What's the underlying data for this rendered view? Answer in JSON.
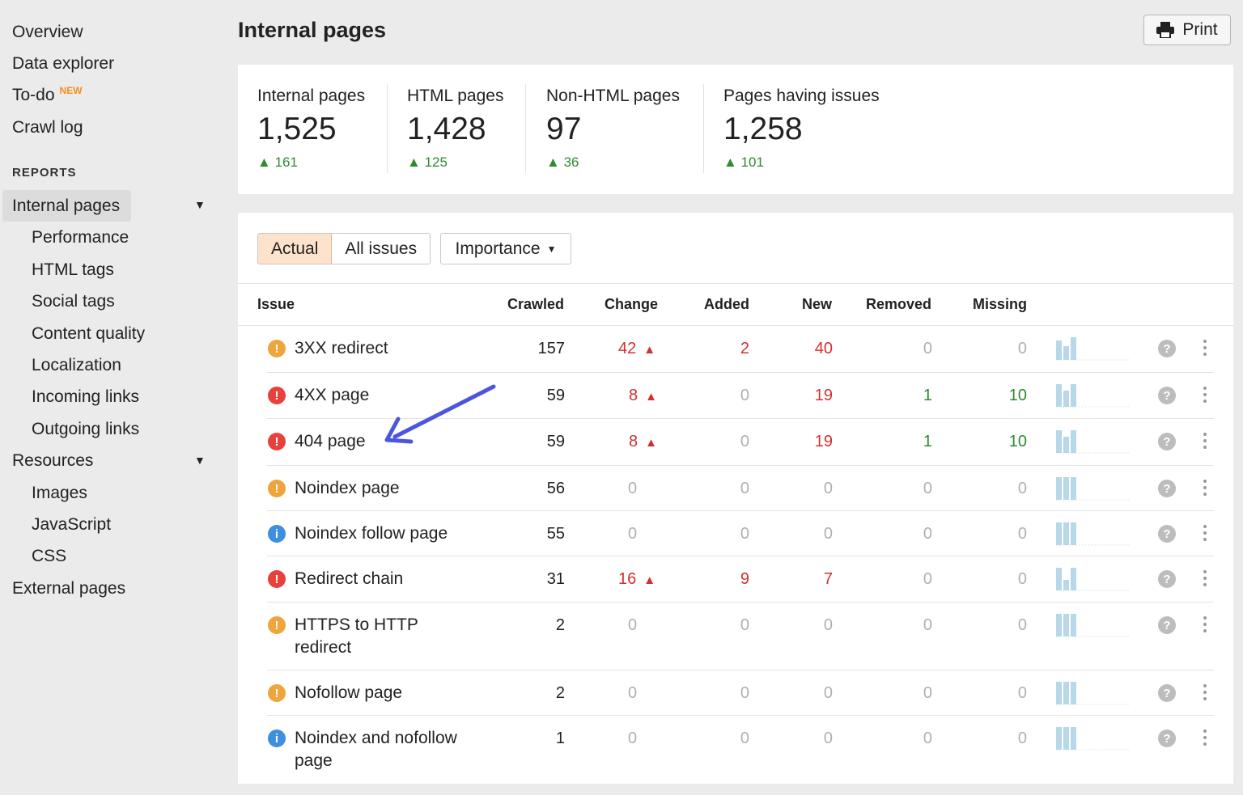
{
  "sidebar": {
    "items": [
      {
        "label": "Overview"
      },
      {
        "label": "Data explorer"
      },
      {
        "label": "To-do",
        "badge": "NEW"
      },
      {
        "label": "Crawl log"
      }
    ],
    "reports_heading": "REPORTS",
    "internal_pages": "Internal pages",
    "internal_sub": [
      "Performance",
      "HTML tags",
      "Social tags",
      "Content quality",
      "Localization",
      "Incoming links",
      "Outgoing links"
    ],
    "resources": "Resources",
    "resources_sub": [
      "Images",
      "JavaScript",
      "CSS"
    ],
    "external_pages": "External pages"
  },
  "header": {
    "title": "Internal pages",
    "print_label": "Print"
  },
  "summary": [
    {
      "label": "Internal pages",
      "value": "1,525",
      "delta": "161"
    },
    {
      "label": "HTML pages",
      "value": "1,428",
      "delta": "125"
    },
    {
      "label": "Non-HTML pages",
      "value": "97",
      "delta": "36"
    },
    {
      "label": "Pages having issues",
      "value": "1,258",
      "delta": "101"
    }
  ],
  "filters": {
    "actual": "Actual",
    "all_issues": "All issues",
    "importance": "Importance"
  },
  "table": {
    "headers": {
      "issue": "Issue",
      "crawled": "Crawled",
      "change": "Change",
      "added": "Added",
      "new": "New",
      "removed": "Removed",
      "missing": "Missing"
    },
    "rows": [
      {
        "severity": "warning",
        "name": "3XX redirect",
        "crawled": "157",
        "change": "42",
        "change_up": true,
        "added": "2",
        "new": "40",
        "removed": "0",
        "missing": "0",
        "spark": [
          0.85,
          0.6,
          1
        ]
      },
      {
        "severity": "error",
        "name": "4XX page",
        "crawled": "59",
        "change": "8",
        "change_up": true,
        "added": "0",
        "new": "19",
        "removed": "1",
        "missing": "10",
        "spark": [
          1,
          0.7,
          1
        ]
      },
      {
        "severity": "error",
        "name": "404 page",
        "crawled": "59",
        "change": "8",
        "change_up": true,
        "added": "0",
        "new": "19",
        "removed": "1",
        "missing": "10",
        "spark": [
          1,
          0.7,
          1
        ]
      },
      {
        "severity": "warning",
        "name": "Noindex page",
        "crawled": "56",
        "change": "0",
        "change_up": false,
        "added": "0",
        "new": "0",
        "removed": "0",
        "missing": "0",
        "spark": [
          1,
          1,
          1
        ]
      },
      {
        "severity": "info",
        "name": "Noindex follow page",
        "crawled": "55",
        "change": "0",
        "change_up": false,
        "added": "0",
        "new": "0",
        "removed": "0",
        "missing": "0",
        "spark": [
          1,
          1,
          1
        ]
      },
      {
        "severity": "error",
        "name": "Redirect chain",
        "crawled": "31",
        "change": "16",
        "change_up": true,
        "added": "9",
        "new": "7",
        "removed": "0",
        "missing": "0",
        "spark": [
          1,
          0.45,
          1
        ]
      },
      {
        "severity": "warning",
        "name": "HTTPS to HTTP redirect",
        "name_line2": "redirect",
        "name_line1": "HTTPS to HTTP",
        "crawled": "2",
        "change": "0",
        "change_up": false,
        "added": "0",
        "new": "0",
        "removed": "0",
        "missing": "0",
        "spark": [
          1,
          1,
          1
        ]
      },
      {
        "severity": "warning",
        "name": "Nofollow page",
        "crawled": "2",
        "change": "0",
        "change_up": false,
        "added": "0",
        "new": "0",
        "removed": "0",
        "missing": "0",
        "spark": [
          1,
          1,
          1
        ]
      },
      {
        "severity": "info",
        "name_line1": "Noindex and nofollow",
        "name_line2": "page",
        "crawled": "1",
        "change": "0",
        "change_up": false,
        "added": "0",
        "new": "0",
        "removed": "0",
        "missing": "0",
        "spark": [
          1,
          1,
          1
        ]
      }
    ]
  },
  "colors": {
    "warning": "#f0a53c",
    "error": "#e8413c",
    "info": "#3d8fe0",
    "up_red": "#d23030",
    "green": "#2e8b2e",
    "muted": "#b0b0b0",
    "spark": "#b8d8ea"
  }
}
